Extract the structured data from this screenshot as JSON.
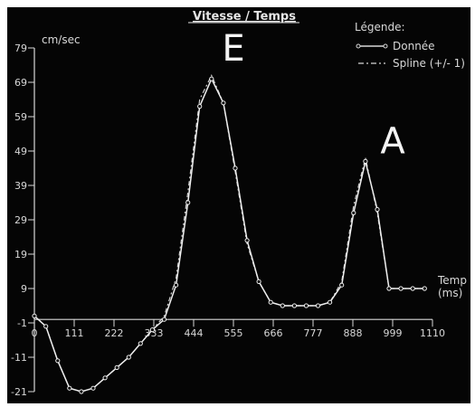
{
  "chart_data": {
    "type": "line",
    "title": "Vitesse / Temps",
    "ylabel": "cm/sec",
    "xlabel_line1": "Temp",
    "xlabel_line2": "(ms)",
    "legend": {
      "title": "Légende:",
      "entries": [
        "Donnée",
        "Spline (+/- 1)"
      ],
      "placement": "top-right"
    },
    "annotations": [
      {
        "text": "E",
        "x": 555,
        "y": 79
      },
      {
        "text": "A",
        "x": 999,
        "y": 52
      }
    ],
    "xlim": [
      0,
      1110
    ],
    "ylim": [
      -21,
      79
    ],
    "x_ticks": [
      0,
      111,
      222,
      333,
      444,
      555,
      666,
      777,
      888,
      999,
      1110
    ],
    "y_ticks": [
      79,
      69,
      59,
      49,
      39,
      29,
      19,
      9,
      -1,
      -11,
      -21
    ],
    "x_tick_labels": [
      "0",
      "111",
      "222",
      "333",
      "444",
      "555",
      "666",
      "777",
      "888",
      "999",
      "1110"
    ],
    "y_tick_labels": [
      "79",
      "69",
      "59",
      "49",
      "39",
      "29",
      "19",
      "9",
      "-1",
      "-11",
      "-21"
    ],
    "grid": false,
    "series": [
      {
        "name": "Donnée",
        "x": [
          0,
          32,
          65,
          98,
          131,
          164,
          197,
          230,
          263,
          296,
          329,
          362,
          395,
          428,
          461,
          494,
          527,
          560,
          593,
          626,
          659,
          692,
          725,
          758,
          791,
          824,
          857,
          890,
          923,
          956,
          989,
          1022,
          1055,
          1088
        ],
        "y": [
          1,
          -2,
          -12,
          -20,
          -21,
          -20,
          -17,
          -14,
          -11,
          -7,
          -3,
          0,
          10,
          34,
          62,
          70,
          63,
          44,
          23,
          11,
          5,
          4,
          4,
          4,
          4,
          5,
          10,
          31,
          46,
          32,
          9,
          9,
          9,
          9
        ]
      },
      {
        "name": "Spline (+/- 1)",
        "x": [
          0,
          32,
          65,
          98,
          131,
          164,
          197,
          230,
          263,
          296,
          329,
          362,
          395,
          428,
          461,
          494,
          527,
          560,
          593,
          626,
          659,
          692,
          725,
          758,
          791,
          824,
          857,
          890,
          923,
          956,
          989,
          1022,
          1055,
          1088
        ],
        "y": [
          1,
          -2,
          -12,
          -20,
          -21,
          -20,
          -17,
          -14,
          -11,
          -7,
          -3,
          1,
          12,
          37,
          64,
          71,
          63,
          43,
          22,
          11,
          5,
          4,
          4,
          4,
          4,
          5,
          11,
          33,
          47,
          31,
          9,
          9,
          9,
          9
        ]
      }
    ]
  }
}
